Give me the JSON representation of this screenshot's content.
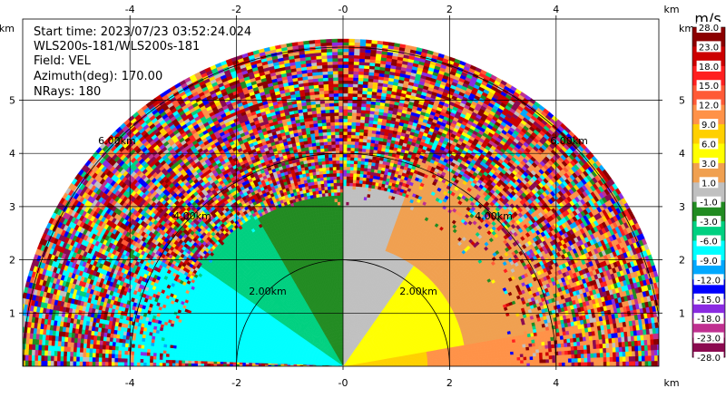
{
  "chart_data": {
    "type": "heatmap",
    "x_unit": "km",
    "y_unit": "km",
    "xlim": [
      -5.8,
      6.0
    ],
    "ylim": [
      0,
      5.8
    ],
    "x_ticks": [
      -4,
      -2,
      0,
      2,
      4
    ],
    "y_ticks": [
      1,
      2,
      3,
      4,
      5
    ],
    "x_tick_labels": [
      "-4",
      "-2",
      "-0",
      "2",
      "4"
    ],
    "y_tick_labels": [
      "1",
      "2",
      "3",
      "4",
      "5"
    ],
    "grid": true,
    "range_rings_km": [
      2,
      4,
      6
    ],
    "range_ring_labels": [
      "2.00km",
      "4.00km",
      "6.00km"
    ],
    "max_range_km": 6.1,
    "info": {
      "start_time": "Start time: 2023/07/23 03:52:24.024",
      "instrument": "WLS200s-181/WLS200s-181",
      "field": "Field: VEL",
      "azimuth": "Azimuth(deg): 170.00",
      "nrays": "NRays: 180"
    },
    "colorbar": {
      "unit": "m/s",
      "placement": "right",
      "levels": [
        "28.0",
        "23.0",
        "18.0",
        "15.0",
        "12.0",
        "9.0",
        "6.0",
        "3.0",
        "1.0",
        "-1.0",
        "-3.0",
        "-6.0",
        "-9.0",
        "-12.0",
        "-15.0",
        "-18.0",
        "-23.0",
        "-28.0"
      ],
      "colors": [
        "#8b0000",
        "#cc0000",
        "#ff2020",
        "#ff5a36",
        "#ff9248",
        "#ffd000",
        "#ffff00",
        "#f0a050",
        "#c0c0c0",
        "#228b22",
        "#00d080",
        "#00ffff",
        "#00a8ff",
        "#0000ff",
        "#8a2be2",
        "#c03090",
        "#8b0a50"
      ]
    },
    "velocity_regions": [
      {
        "az_from_deg": 0,
        "az_to_deg": 10,
        "range_from_km": 0,
        "range_to_km": 1.6,
        "value": 7
      },
      {
        "az_from_deg": 10,
        "az_to_deg": 55,
        "range_from_km": 0,
        "range_to_km": 2.3,
        "value": 5
      },
      {
        "az_from_deg": 10,
        "az_to_deg": 70,
        "range_from_km": 2.3,
        "range_to_km": 4.2,
        "value": 2
      },
      {
        "az_from_deg": 55,
        "az_to_deg": 90,
        "range_from_km": 0,
        "range_to_km": 2.3,
        "value": 0
      },
      {
        "az_from_deg": 70,
        "az_to_deg": 90,
        "range_from_km": 2.3,
        "range_to_km": 3.4,
        "value": 0
      },
      {
        "az_from_deg": 90,
        "az_to_deg": 120,
        "range_from_km": 0,
        "range_to_km": 3.2,
        "value": -2
      },
      {
        "az_from_deg": 120,
        "az_to_deg": 145,
        "range_from_km": 0,
        "range_to_km": 3.3,
        "value": -4
      },
      {
        "az_from_deg": 145,
        "az_to_deg": 178,
        "range_from_km": 0,
        "range_to_km": 3.3,
        "value": -8
      },
      {
        "az_from_deg": 150,
        "az_to_deg": 180,
        "range_from_km": 3.3,
        "range_to_km": 5.8,
        "value": -7
      },
      {
        "az_from_deg": 0,
        "az_to_deg": 10,
        "range_from_km": 1.6,
        "range_to_km": 5.8,
        "value": 12
      },
      {
        "az_from_deg": 10,
        "az_to_deg": 50,
        "range_from_km": 4.2,
        "range_to_km": 5.8,
        "value": 10
      }
    ]
  }
}
